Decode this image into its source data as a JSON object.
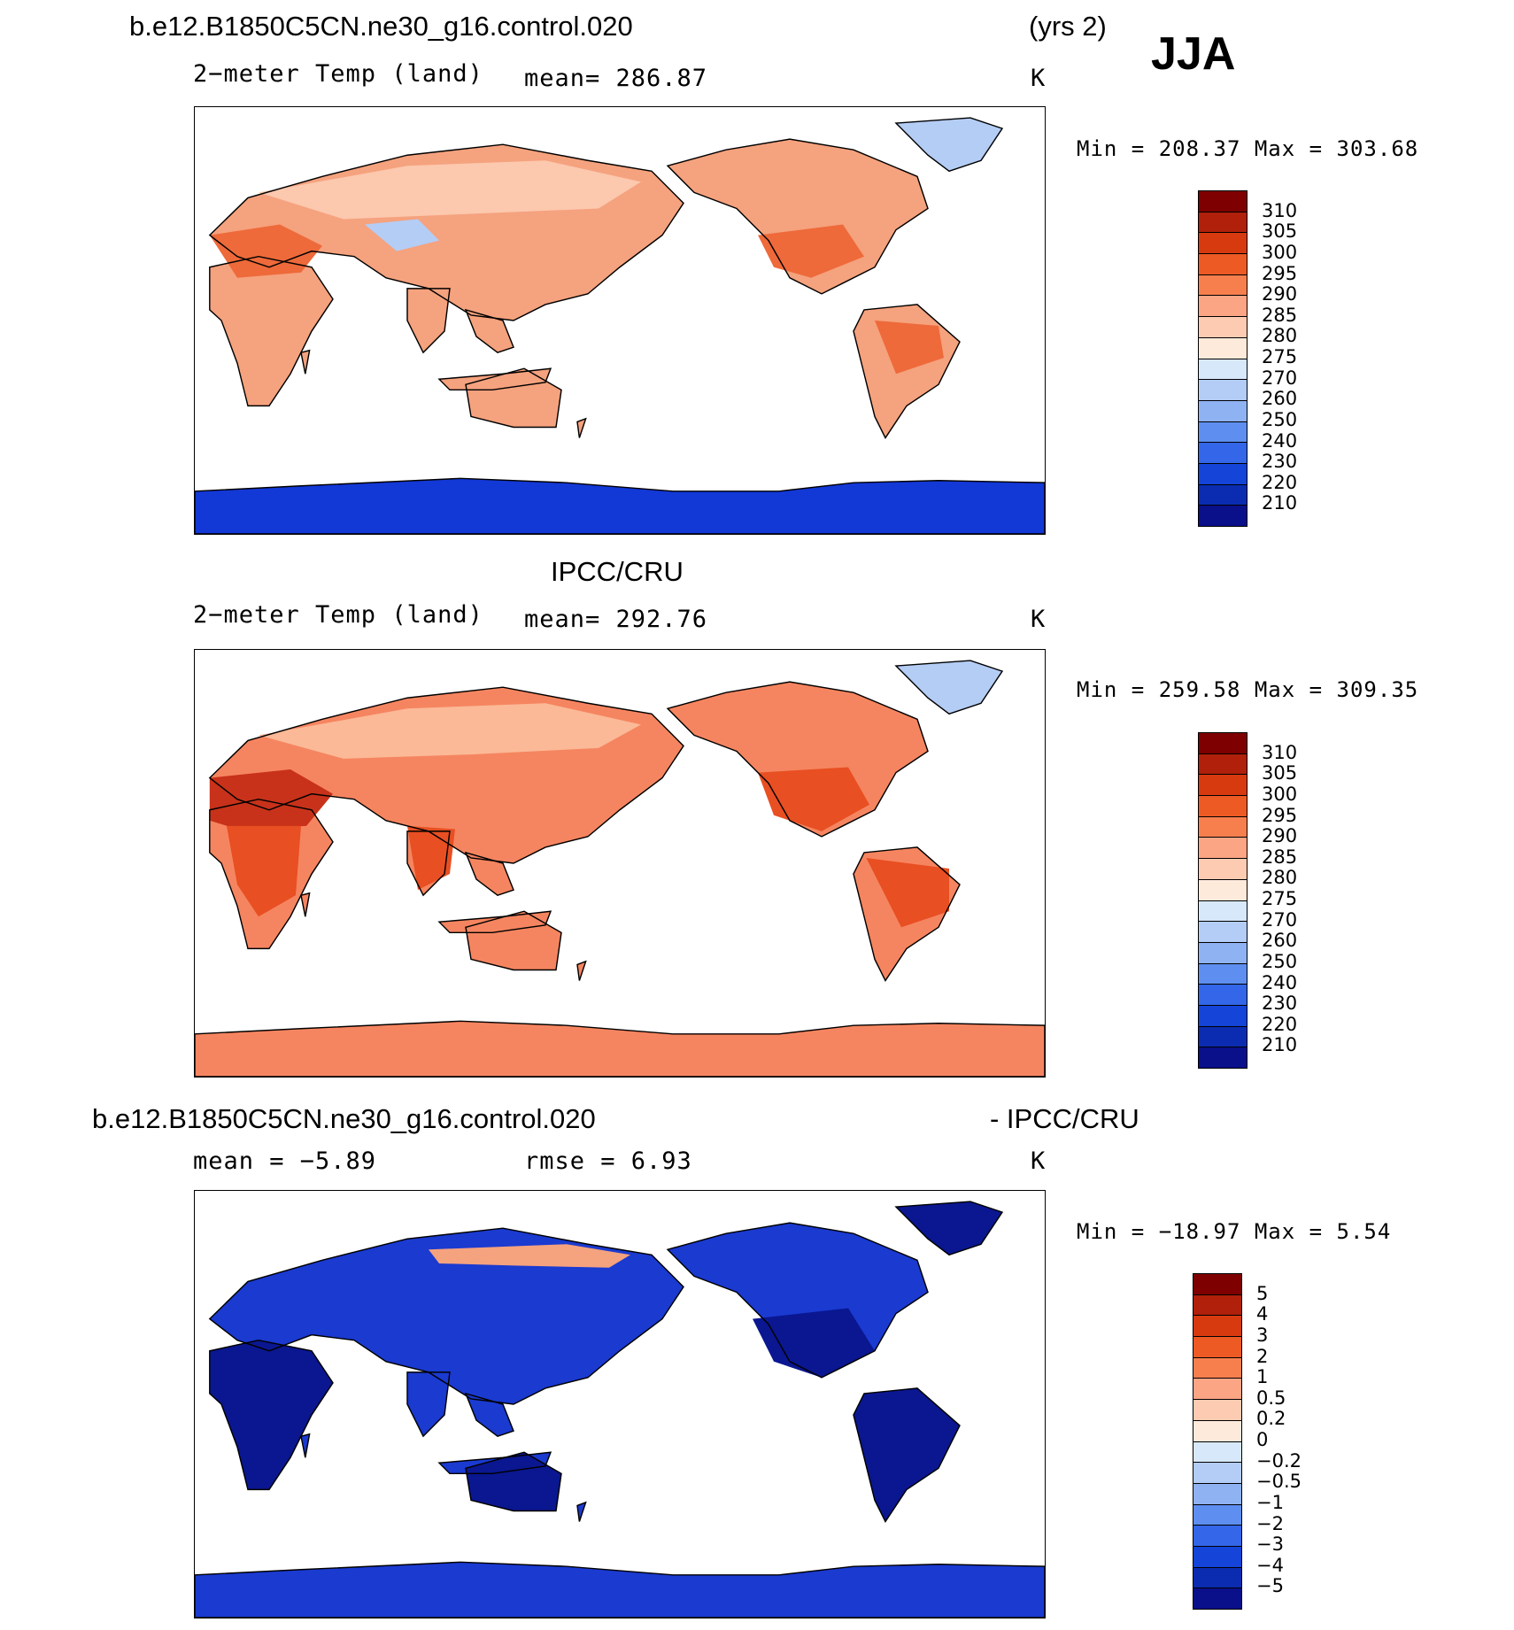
{
  "header": {
    "case_name": "b.e12.B1850C5CN.ne30_g16.control.020",
    "years": "(yrs 2)",
    "season": "JJA"
  },
  "panel_model": {
    "variable": "2−meter Temp (land)",
    "stat": "mean=  286.87",
    "units": "K",
    "range": "Min  =  208.37  Max  =  303.68"
  },
  "panel_obs": {
    "title": "IPCC/CRU",
    "variable": "2−meter Temp (land)",
    "stat": "mean=  292.76",
    "units": "K",
    "range": "Min  =  259.58  Max  =  309.35"
  },
  "panel_diff": {
    "left_title": "b.e12.B1850C5CN.ne30_g16.control.020",
    "right_title": "- IPCC/CRU",
    "mean_label": "mean  =    −5.89",
    "rmse_label": "rmse  =     6.93",
    "units": "K",
    "range": "Min  =  −18.97  Max  =      5.54"
  },
  "colorbar_abs": {
    "labels": [
      "310",
      "305",
      "300",
      "295",
      "290",
      "285",
      "280",
      "275",
      "270",
      "260",
      "250",
      "240",
      "230",
      "220",
      "210"
    ],
    "colors": [
      "#7f0000",
      "#b0200a",
      "#d83a10",
      "#ee5a24",
      "#f77f4e",
      "#fba585",
      "#fdcbb2",
      "#fdeadb",
      "#d7e8fb",
      "#b3cdf7",
      "#8fb2f3",
      "#5e8ff0",
      "#3366e8",
      "#1444d8",
      "#0b2cb0",
      "#0a0f8a"
    ]
  },
  "colorbar_diff": {
    "labels": [
      "5",
      "4",
      "3",
      "2",
      "1",
      "0.5",
      "0.2",
      "0",
      "−0.2",
      "−0.5",
      "−1",
      "−2",
      "−3",
      "−4",
      "−5"
    ],
    "colors": [
      "#7f0000",
      "#b0200a",
      "#d83a10",
      "#ee5a24",
      "#f77f4e",
      "#fba585",
      "#fdcbb2",
      "#fdeadb",
      "#d7e8fb",
      "#b3cdf7",
      "#8fb2f3",
      "#5e8ff0",
      "#3366e8",
      "#1444d8",
      "#0b2cb0",
      "#0a0f8a"
    ]
  },
  "legend_colors": {
    "model_warm": "#f5a27e",
    "model_mid": "#fcc8ae",
    "model_hot": "#ee6a3a",
    "model_cold": "#b4cdf5",
    "model_ice": "#1238d6",
    "obs_warm": "#f58560",
    "obs_hot": "#e84f22",
    "obs_veryhot": "#c8321a",
    "obs_mid": "#fbb997",
    "diff_neg": "#0a1790",
    "diff_mid": "#1a3ad0"
  }
}
